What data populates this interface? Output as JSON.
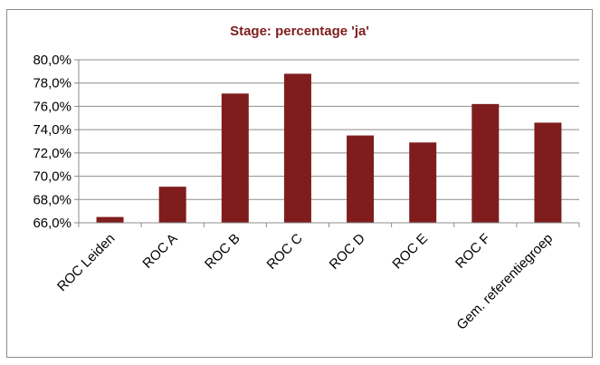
{
  "chart_data": {
    "type": "bar",
    "title": "Stage: percentage 'ja'",
    "categories": [
      "ROC Leiden",
      "ROC A",
      "ROC B",
      "ROC C",
      "ROC D",
      "ROC E",
      "ROC F",
      "Gem. referentiegroep"
    ],
    "series": [
      {
        "values": [
          66.5,
          69.1,
          77.1,
          78.8,
          73.5,
          72.9,
          76.2,
          74.6
        ]
      }
    ],
    "ylim": [
      66,
      80
    ],
    "yticks": [
      "66,0%",
      "68,0%",
      "70,0%",
      "72,0%",
      "74,0%",
      "76,0%",
      "78,0%",
      "80,0%"
    ],
    "ytick_values": [
      66,
      68,
      70,
      72,
      74,
      76,
      78,
      80
    ],
    "grid": true,
    "legend": "none",
    "colors": {
      "bar": "#7f1d1d",
      "title": "#7f1d1d",
      "grid": "#8c8c8c",
      "axis": "#8c8c8c"
    }
  }
}
